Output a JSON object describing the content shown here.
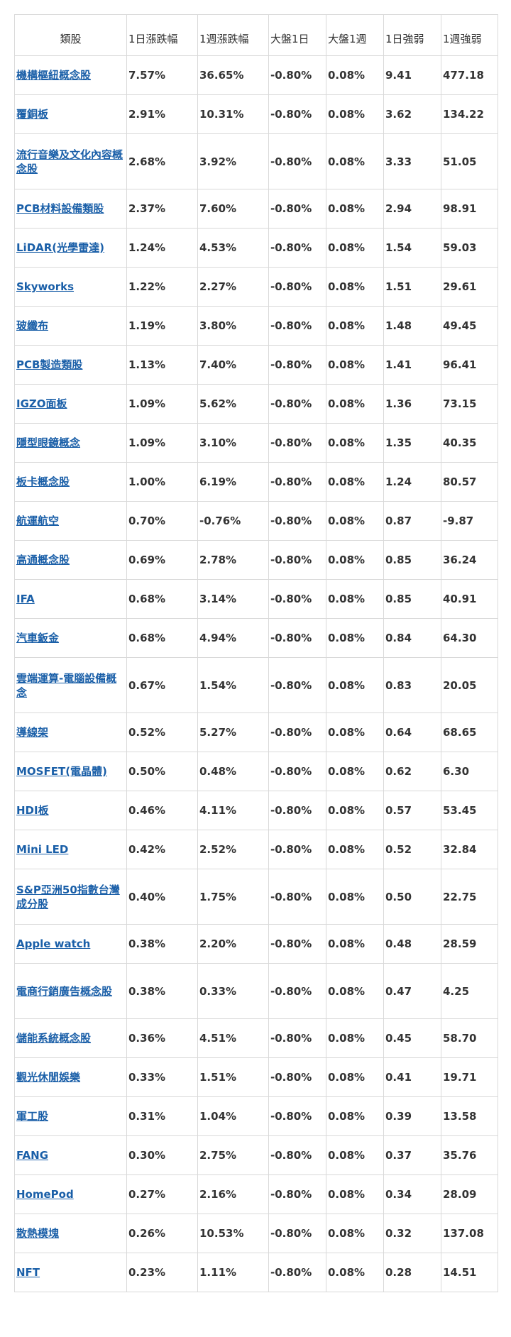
{
  "table": {
    "headers": [
      "類股",
      "1日漲跌幅",
      "1週漲跌幅",
      "大盤1日",
      "大盤1週",
      "1日強弱",
      "1週強弱"
    ],
    "rows": [
      {
        "name": "機構樞紐概念股",
        "d1": "7.57%",
        "w1": "36.65%",
        "m_d1": "-0.80%",
        "m_w1": "0.08%",
        "s_d1": "9.41",
        "s_w1": "477.18"
      },
      {
        "name": "覆銅板",
        "d1": "2.91%",
        "w1": "10.31%",
        "m_d1": "-0.80%",
        "m_w1": "0.08%",
        "s_d1": "3.62",
        "s_w1": "134.22"
      },
      {
        "name": "流行音樂及文化內容概念股",
        "d1": "2.68%",
        "w1": "3.92%",
        "m_d1": "-0.80%",
        "m_w1": "0.08%",
        "s_d1": "3.33",
        "s_w1": "51.05",
        "tall": true
      },
      {
        "name": "PCB材料設備類股",
        "d1": "2.37%",
        "w1": "7.60%",
        "m_d1": "-0.80%",
        "m_w1": "0.08%",
        "s_d1": "2.94",
        "s_w1": "98.91"
      },
      {
        "name": "LiDAR(光學雷達)",
        "d1": "1.24%",
        "w1": "4.53%",
        "m_d1": "-0.80%",
        "m_w1": "0.08%",
        "s_d1": "1.54",
        "s_w1": "59.03"
      },
      {
        "name": "Skyworks",
        "d1": "1.22%",
        "w1": "2.27%",
        "m_d1": "-0.80%",
        "m_w1": "0.08%",
        "s_d1": "1.51",
        "s_w1": "29.61"
      },
      {
        "name": "玻纖布",
        "d1": "1.19%",
        "w1": "3.80%",
        "m_d1": "-0.80%",
        "m_w1": "0.08%",
        "s_d1": "1.48",
        "s_w1": "49.45"
      },
      {
        "name": "PCB製造類股",
        "d1": "1.13%",
        "w1": "7.40%",
        "m_d1": "-0.80%",
        "m_w1": "0.08%",
        "s_d1": "1.41",
        "s_w1": "96.41"
      },
      {
        "name": "IGZO面板",
        "d1": "1.09%",
        "w1": "5.62%",
        "m_d1": "-0.80%",
        "m_w1": "0.08%",
        "s_d1": "1.36",
        "s_w1": "73.15"
      },
      {
        "name": "隱型眼鏡概念",
        "d1": "1.09%",
        "w1": "3.10%",
        "m_d1": "-0.80%",
        "m_w1": "0.08%",
        "s_d1": "1.35",
        "s_w1": "40.35"
      },
      {
        "name": "板卡概念股",
        "d1": "1.00%",
        "w1": "6.19%",
        "m_d1": "-0.80%",
        "m_w1": "0.08%",
        "s_d1": "1.24",
        "s_w1": "80.57"
      },
      {
        "name": "航運航空",
        "d1": "0.70%",
        "w1": "-0.76%",
        "m_d1": "-0.80%",
        "m_w1": "0.08%",
        "s_d1": "0.87",
        "s_w1": "-9.87"
      },
      {
        "name": "高通概念股",
        "d1": "0.69%",
        "w1": "2.78%",
        "m_d1": "-0.80%",
        "m_w1": "0.08%",
        "s_d1": "0.85",
        "s_w1": "36.24"
      },
      {
        "name": "IFA",
        "d1": "0.68%",
        "w1": "3.14%",
        "m_d1": "-0.80%",
        "m_w1": "0.08%",
        "s_d1": "0.85",
        "s_w1": "40.91"
      },
      {
        "name": "汽車鈑金",
        "d1": "0.68%",
        "w1": "4.94%",
        "m_d1": "-0.80%",
        "m_w1": "0.08%",
        "s_d1": "0.84",
        "s_w1": "64.30"
      },
      {
        "name": "雲端運算-電腦設備概念",
        "d1": "0.67%",
        "w1": "1.54%",
        "m_d1": "-0.80%",
        "m_w1": "0.08%",
        "s_d1": "0.83",
        "s_w1": "20.05",
        "tall": true
      },
      {
        "name": "導線架",
        "d1": "0.52%",
        "w1": "5.27%",
        "m_d1": "-0.80%",
        "m_w1": "0.08%",
        "s_d1": "0.64",
        "s_w1": "68.65"
      },
      {
        "name": "MOSFET(電晶體)",
        "d1": "0.50%",
        "w1": "0.48%",
        "m_d1": "-0.80%",
        "m_w1": "0.08%",
        "s_d1": "0.62",
        "s_w1": "6.30"
      },
      {
        "name": "HDI板",
        "d1": "0.46%",
        "w1": "4.11%",
        "m_d1": "-0.80%",
        "m_w1": "0.08%",
        "s_d1": "0.57",
        "s_w1": "53.45"
      },
      {
        "name": "Mini LED",
        "d1": "0.42%",
        "w1": "2.52%",
        "m_d1": "-0.80%",
        "m_w1": "0.08%",
        "s_d1": "0.52",
        "s_w1": "32.84"
      },
      {
        "name": "S&P亞洲50指數台灣成分股",
        "d1": "0.40%",
        "w1": "1.75%",
        "m_d1": "-0.80%",
        "m_w1": "0.08%",
        "s_d1": "0.50",
        "s_w1": "22.75",
        "tall": true
      },
      {
        "name": "Apple watch",
        "d1": "0.38%",
        "w1": "2.20%",
        "m_d1": "-0.80%",
        "m_w1": "0.08%",
        "s_d1": "0.48",
        "s_w1": "28.59"
      },
      {
        "name": "電商行銷廣告概念股",
        "d1": "0.38%",
        "w1": "0.33%",
        "m_d1": "-0.80%",
        "m_w1": "0.08%",
        "s_d1": "0.47",
        "s_w1": "4.25",
        "tall": true
      },
      {
        "name": "儲能系統概念股",
        "d1": "0.36%",
        "w1": "4.51%",
        "m_d1": "-0.80%",
        "m_w1": "0.08%",
        "s_d1": "0.45",
        "s_w1": "58.70"
      },
      {
        "name": "觀光休閒娛樂",
        "d1": "0.33%",
        "w1": "1.51%",
        "m_d1": "-0.80%",
        "m_w1": "0.08%",
        "s_d1": "0.41",
        "s_w1": "19.71"
      },
      {
        "name": "軍工股",
        "d1": "0.31%",
        "w1": "1.04%",
        "m_d1": "-0.80%",
        "m_w1": "0.08%",
        "s_d1": "0.39",
        "s_w1": "13.58"
      },
      {
        "name": "FANG",
        "d1": "0.30%",
        "w1": "2.75%",
        "m_d1": "-0.80%",
        "m_w1": "0.08%",
        "s_d1": "0.37",
        "s_w1": "35.76"
      },
      {
        "name": "HomePod",
        "d1": "0.27%",
        "w1": "2.16%",
        "m_d1": "-0.80%",
        "m_w1": "0.08%",
        "s_d1": "0.34",
        "s_w1": "28.09"
      },
      {
        "name": "散熱模塊",
        "d1": "0.26%",
        "w1": "10.53%",
        "m_d1": "-0.80%",
        "m_w1": "0.08%",
        "s_d1": "0.32",
        "s_w1": "137.08"
      },
      {
        "name": "NFT",
        "d1": "0.23%",
        "w1": "1.11%",
        "m_d1": "-0.80%",
        "m_w1": "0.08%",
        "s_d1": "0.28",
        "s_w1": "14.51"
      }
    ]
  },
  "colors": {
    "link": "#1a5fa8",
    "text": "#333333",
    "border": "#d9d9d9"
  }
}
